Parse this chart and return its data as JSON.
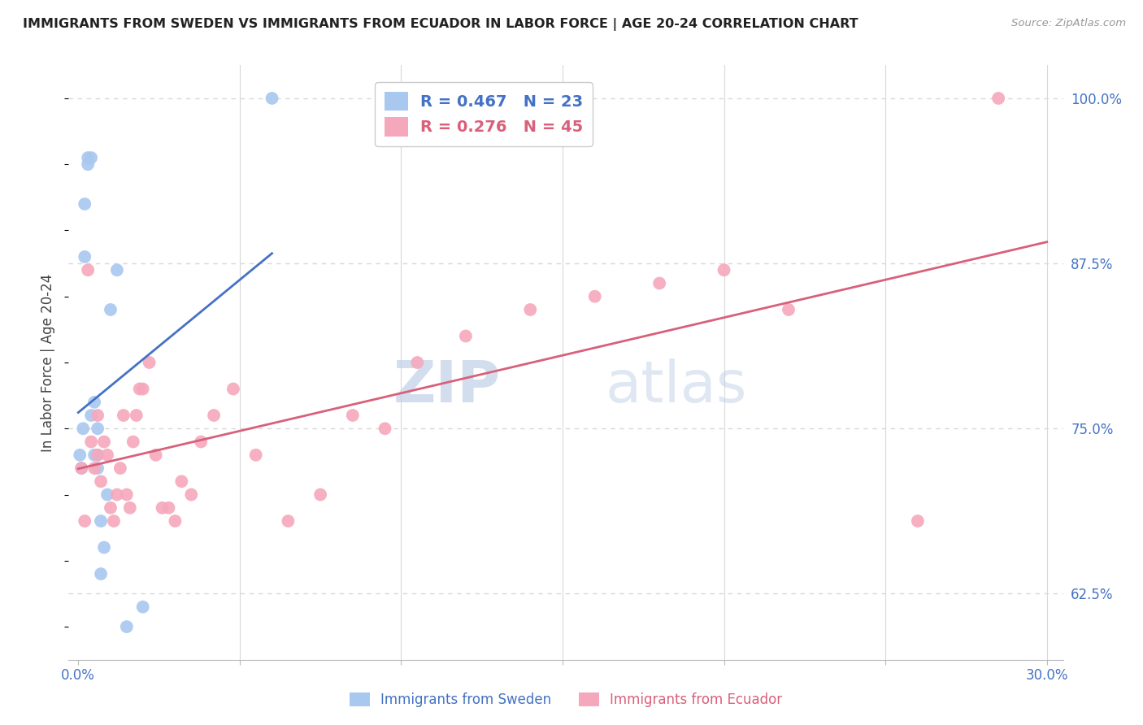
{
  "title": "IMMIGRANTS FROM SWEDEN VS IMMIGRANTS FROM ECUADOR IN LABOR FORCE | AGE 20-24 CORRELATION CHART",
  "source": "Source: ZipAtlas.com",
  "ylabel": "In Labor Force | Age 20-24",
  "xlim": [
    -0.003,
    0.305
  ],
  "ylim": [
    0.575,
    1.025
  ],
  "xticks": [
    0.0,
    0.05,
    0.1,
    0.15,
    0.2,
    0.25,
    0.3
  ],
  "xticklabels": [
    "0.0%",
    "",
    "",
    "",
    "",
    "",
    "30.0%"
  ],
  "yticks_right": [
    0.625,
    0.75,
    0.875,
    1.0
  ],
  "ytick_labels_right": [
    "62.5%",
    "75.0%",
    "87.5%",
    "100.0%"
  ],
  "sweden_color": "#a8c8f0",
  "ecuador_color": "#f5a8bc",
  "sweden_R": 0.467,
  "sweden_N": 23,
  "ecuador_R": 0.276,
  "ecuador_N": 45,
  "line_sweden_color": "#4472c4",
  "line_ecuador_color": "#d9607a",
  "sweden_x": [
    0.0005,
    0.001,
    0.0015,
    0.002,
    0.002,
    0.003,
    0.003,
    0.004,
    0.004,
    0.005,
    0.005,
    0.006,
    0.006,
    0.006,
    0.007,
    0.007,
    0.008,
    0.009,
    0.01,
    0.012,
    0.015,
    0.02,
    0.06
  ],
  "sweden_y": [
    0.73,
    0.72,
    0.75,
    0.92,
    0.88,
    0.95,
    0.955,
    0.955,
    0.76,
    0.77,
    0.73,
    0.75,
    0.73,
    0.72,
    0.64,
    0.68,
    0.66,
    0.7,
    0.84,
    0.87,
    0.6,
    0.615,
    1.0
  ],
  "ecuador_x": [
    0.001,
    0.002,
    0.003,
    0.004,
    0.005,
    0.006,
    0.006,
    0.007,
    0.008,
    0.009,
    0.01,
    0.011,
    0.012,
    0.013,
    0.014,
    0.015,
    0.016,
    0.017,
    0.018,
    0.019,
    0.02,
    0.022,
    0.024,
    0.026,
    0.028,
    0.03,
    0.032,
    0.035,
    0.038,
    0.042,
    0.048,
    0.055,
    0.065,
    0.075,
    0.085,
    0.095,
    0.105,
    0.12,
    0.14,
    0.16,
    0.18,
    0.2,
    0.22,
    0.26,
    0.285
  ],
  "ecuador_y": [
    0.72,
    0.68,
    0.87,
    0.74,
    0.72,
    0.76,
    0.73,
    0.71,
    0.74,
    0.73,
    0.69,
    0.68,
    0.7,
    0.72,
    0.76,
    0.7,
    0.69,
    0.74,
    0.76,
    0.78,
    0.78,
    0.8,
    0.73,
    0.69,
    0.69,
    0.68,
    0.71,
    0.7,
    0.74,
    0.76,
    0.78,
    0.73,
    0.68,
    0.7,
    0.76,
    0.75,
    0.8,
    0.82,
    0.84,
    0.85,
    0.86,
    0.87,
    0.84,
    0.68,
    1.0
  ],
  "background_color": "#ffffff",
  "grid_color": "#d8d8d8",
  "watermark_left": "ZIP",
  "watermark_right": "atlas",
  "watermark_color": "#c8d8f0"
}
